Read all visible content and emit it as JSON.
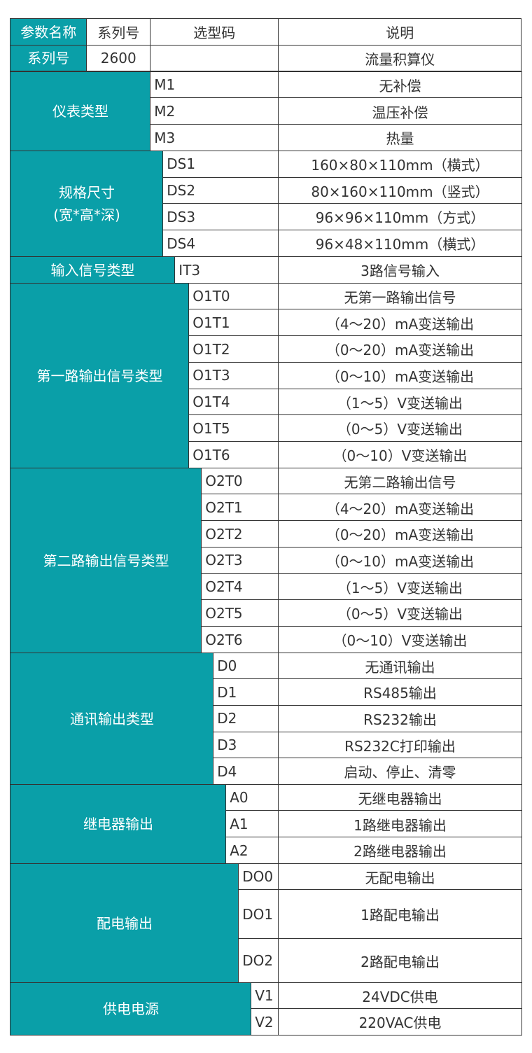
{
  "header": {
    "param_name": "参数名称",
    "series": "系列号",
    "code": "选型码",
    "desc": "说明"
  },
  "series_row": {
    "label": "系列号",
    "value": "2600",
    "code": "",
    "desc": "流量积算仪"
  },
  "groups": [
    {
      "label": "仪表类型",
      "rows": [
        {
          "code": "M1",
          "desc": "无补偿"
        },
        {
          "code": "M2",
          "desc": "温压补偿"
        },
        {
          "code": "M3",
          "desc": "热量"
        }
      ]
    },
    {
      "label": "规格尺寸\n(宽*高*深)",
      "rows": [
        {
          "code": "DS1",
          "desc": "160×80×110mm（横式）"
        },
        {
          "code": "DS2",
          "desc": "80×160×110mm（竖式）"
        },
        {
          "code": "DS3",
          "desc": "96×96×110mm（方式）"
        },
        {
          "code": "DS4",
          "desc": "96×48×110mm（横式）"
        }
      ]
    },
    {
      "label": "输入信号类型",
      "rows": [
        {
          "code": "IT3",
          "desc": "3路信号输入"
        }
      ]
    },
    {
      "label": "第一路输出信号类型",
      "rows": [
        {
          "code": "O1T0",
          "desc": "无第一路输出信号"
        },
        {
          "code": "O1T1",
          "desc": "（4～20）mA变送输出"
        },
        {
          "code": "O1T2",
          "desc": "（0～20）mA变送输出"
        },
        {
          "code": "O1T3",
          "desc": "（0～10）mA变送输出"
        },
        {
          "code": "O1T4",
          "desc": "（1～5）V变送输出"
        },
        {
          "code": "O1T5",
          "desc": "（0～5）V变送输出"
        },
        {
          "code": "O1T6",
          "desc": "（0～10）V变送输出"
        }
      ]
    },
    {
      "label": "第二路输出信号类型",
      "rows": [
        {
          "code": "O2T0",
          "desc": "无第二路输出信号"
        },
        {
          "code": "O2T1",
          "desc": "（4～20）mA变送输出"
        },
        {
          "code": "O2T2",
          "desc": "（0～20）mA变送输出"
        },
        {
          "code": "O2T3",
          "desc": "（0～10）mA变送输出"
        },
        {
          "code": "O2T4",
          "desc": "（1～5）V变送输出"
        },
        {
          "code": "O2T5",
          "desc": "（0～5）V变送输出"
        },
        {
          "code": "O2T6",
          "desc": "（0～10）V变送输出"
        }
      ]
    },
    {
      "label": "通讯输出类型",
      "rows": [
        {
          "code": "D0",
          "desc": "无通讯输出"
        },
        {
          "code": "D1",
          "desc": "RS485输出"
        },
        {
          "code": "D2",
          "desc": "RS232输出"
        },
        {
          "code": "D3",
          "desc": "RS232C打印输出"
        },
        {
          "code": "D4",
          "desc": "启动、停止、清零"
        }
      ]
    },
    {
      "label": "继电器输出",
      "rows": [
        {
          "code": "A0",
          "desc": "无继电器输出"
        },
        {
          "code": "A1",
          "desc": "1路继电器输出"
        },
        {
          "code": "A2",
          "desc": "2路继电器输出"
        }
      ]
    },
    {
      "label": "配电输出",
      "rows": [
        {
          "code": "DO0",
          "desc": "无配电输出"
        },
        {
          "code": "DO1",
          "desc": "1路配电输出"
        },
        {
          "code": "DO2",
          "desc": "2路配电输出"
        }
      ]
    },
    {
      "label": "供电电源",
      "rows": [
        {
          "code": "V1",
          "desc": "24VDC供电"
        },
        {
          "code": "V2",
          "desc": "220VAC供电"
        }
      ]
    }
  ],
  "colors": {
    "accent": "#0a9fa8",
    "border": "#333333"
  }
}
